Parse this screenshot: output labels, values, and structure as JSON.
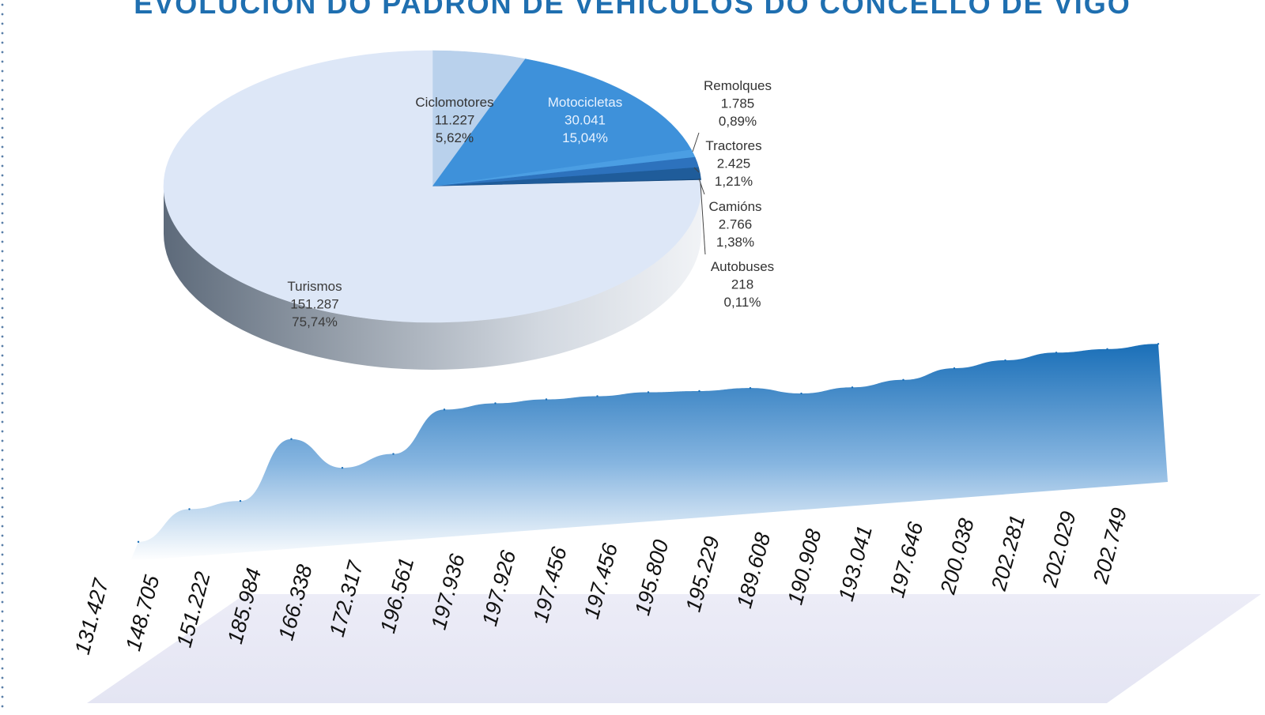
{
  "title": "EVOLUCIÓN DO PADRÓN DE VEHÍCULOS DO CONCELLO DE VIGO",
  "colors": {
    "title": "#1f6fb0",
    "pie_light": "#dfe8f7",
    "pie_blue": "#3f93db",
    "pie_dark": "#2f73b8",
    "area_top": "#1f78c4",
    "floor": "#e8e9f6"
  },
  "chart_data": [
    {
      "type": "pie",
      "slices": [
        {
          "name": "Turismos",
          "value": 151287,
          "value_label": "151.287",
          "percent_label": "75,74%",
          "percent": 75.74
        },
        {
          "name": "Ciclomotores",
          "value": 11227,
          "value_label": "11.227",
          "percent_label": "5,62%",
          "percent": 5.62
        },
        {
          "name": "Motocicletas",
          "value": 30041,
          "value_label": "30.041",
          "percent_label": "15,04%",
          "percent": 15.04
        },
        {
          "name": "Remolques",
          "value": 1785,
          "value_label": "1.785",
          "percent_label": "0,89%",
          "percent": 0.89
        },
        {
          "name": "Tractores",
          "value": 2425,
          "value_label": "2.425",
          "percent_label": "1,21%",
          "percent": 1.21
        },
        {
          "name": "Camións",
          "value": 2766,
          "value_label": "2.766",
          "percent_label": "1,38%",
          "percent": 1.38
        },
        {
          "name": "Autobuses",
          "value": 218,
          "value_label": "218",
          "percent_label": "0,11%",
          "percent": 0.11
        }
      ]
    },
    {
      "type": "area",
      "values": [
        131427,
        148705,
        151222,
        185984,
        166338,
        172317,
        196561,
        197936,
        197926,
        197456,
        197456,
        195800,
        195229,
        189608,
        190908,
        193041,
        197646,
        200038,
        202281,
        202029,
        202749
      ],
      "value_labels": [
        "131.427",
        "148.705",
        "151.222",
        "185.984",
        "166.338",
        "172.317",
        "196.561",
        "197.936",
        "197.926",
        "197.456",
        "197.456",
        "195.800",
        "195.229",
        "189.608",
        "190.908",
        "193.041",
        "197.646",
        "200.038",
        "202.281",
        "202.029",
        "202.749"
      ],
      "ylim": [
        120000,
        210000
      ]
    }
  ]
}
